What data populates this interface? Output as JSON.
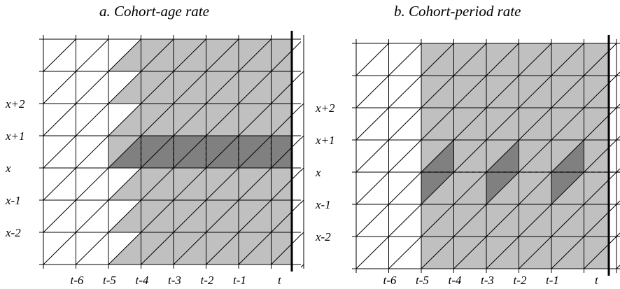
{
  "panels": [
    {
      "id": "a",
      "title": "a. Cohort-age rate",
      "age_labels": [
        {
          "text": "x+2",
          "row": 3
        },
        {
          "text": "x+1",
          "row": 4
        },
        {
          "text": "x",
          "row": 5
        },
        {
          "text": "x-1",
          "row": 6
        },
        {
          "text": "x-2",
          "row": 7
        }
      ],
      "time_labels": [
        {
          "text": "t-6",
          "col": 1
        },
        {
          "text": "t-5",
          "col": 2
        },
        {
          "text": "t-4",
          "col": 3
        },
        {
          "text": "t-3",
          "col": 4
        },
        {
          "text": "t-2",
          "col": 5
        },
        {
          "text": "t-1",
          "col": 6
        },
        {
          "text": "t",
          "col": 7
        }
      ],
      "shaded_region": "parallelogram band from time t-5 to t, spanning cohorts, with rows x to x+1 highlighted in dark grey",
      "dashed_lines": "vertical at each year boundary within the dark row"
    },
    {
      "id": "b",
      "title": "b. Cohort-period rate",
      "age_labels": [
        {
          "text": "x+2",
          "row": 3
        },
        {
          "text": "x+1",
          "row": 4
        },
        {
          "text": "x",
          "row": 5
        },
        {
          "text": "x-1",
          "row": 6
        },
        {
          "text": "x-2",
          "row": 7
        }
      ],
      "time_labels": [
        {
          "text": "t-6",
          "col": 1
        },
        {
          "text": "t-5",
          "col": 2
        },
        {
          "text": "t-4",
          "col": 3
        },
        {
          "text": "t-3",
          "col": 4
        },
        {
          "text": "t-2",
          "col": 5
        },
        {
          "text": "t-1",
          "col": 6
        },
        {
          "text": "t",
          "col": 7
        }
      ],
      "shaded_region": "full rectangle from time t-5 to t with alternating dark parallelograms spanning ages x-1 to x+1",
      "dashed_lines": "horizontal at age x"
    }
  ],
  "colors": {
    "light_fill": "#c0c0c0",
    "dark_fill": "#808080",
    "line": "#000000"
  }
}
